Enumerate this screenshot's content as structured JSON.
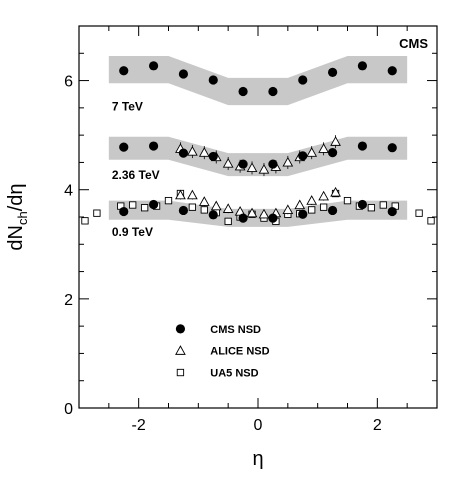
{
  "chart_data": {
    "type": "scatter",
    "experiment_label": "CMS",
    "xlabel_html": "η",
    "ylabel_main": "dN",
    "ylabel_sub": "ch",
    "ylabel_tail": "/dη",
    "xlim": [
      -3,
      3
    ],
    "ylim": [
      0,
      7
    ],
    "x_ticks": [
      -2,
      0,
      2
    ],
    "x_tick_labels": [
      "-2",
      "0",
      "2"
    ],
    "y_ticks": [
      0,
      2,
      4,
      6
    ],
    "y_tick_labels": [
      "0",
      "2",
      "4",
      "6"
    ],
    "energy_labels": [
      {
        "text": "7 TeV",
        "x": -2.45,
        "y": 5.45
      },
      {
        "text": "2.36 TeV",
        "x": -2.45,
        "y": 4.2
      },
      {
        "text": "0.9 TeV",
        "x": -2.45,
        "y": 3.15
      }
    ],
    "bands": [
      {
        "name": "7 TeV systematic",
        "x": [
          -2.5,
          -1.5,
          -0.5,
          0.5,
          1.5,
          2.5
        ],
        "lower": [
          5.95,
          5.95,
          5.55,
          5.55,
          5.95,
          5.95
        ],
        "upper": [
          6.45,
          6.45,
          6.05,
          6.05,
          6.45,
          6.45
        ]
      },
      {
        "name": "2.36 TeV systematic",
        "x": [
          -2.5,
          -1.5,
          -0.5,
          0.5,
          1.5,
          2.5
        ],
        "lower": [
          4.55,
          4.55,
          4.25,
          4.25,
          4.55,
          4.55
        ],
        "upper": [
          4.97,
          4.97,
          4.67,
          4.67,
          4.97,
          4.97
        ]
      },
      {
        "name": "0.9 TeV systematic",
        "x": [
          -2.5,
          -1.5,
          -0.5,
          0.5,
          1.5,
          2.5
        ],
        "lower": [
          3.45,
          3.45,
          3.32,
          3.32,
          3.45,
          3.45
        ],
        "upper": [
          3.8,
          3.8,
          3.65,
          3.65,
          3.8,
          3.8
        ]
      }
    ],
    "series": [
      {
        "name": "CMS NSD",
        "marker": "filled-circle",
        "energy": "7 TeV",
        "x": [
          -2.25,
          -1.75,
          -1.25,
          -0.75,
          -0.25,
          0.25,
          0.75,
          1.25,
          1.75,
          2.25
        ],
        "y": [
          6.18,
          6.27,
          6.12,
          6.01,
          5.8,
          5.8,
          6.01,
          6.15,
          6.27,
          6.18
        ]
      },
      {
        "name": "CMS NSD",
        "marker": "filled-circle",
        "energy": "2.36 TeV",
        "x": [
          -2.25,
          -1.75,
          -1.25,
          -0.75,
          -0.25,
          0.25,
          0.75,
          1.25,
          1.75,
          2.25
        ],
        "y": [
          4.78,
          4.8,
          4.67,
          4.61,
          4.47,
          4.47,
          4.62,
          4.68,
          4.8,
          4.77
        ]
      },
      {
        "name": "CMS NSD",
        "marker": "filled-circle",
        "energy": "0.9 TeV",
        "x": [
          -2.25,
          -1.75,
          -1.25,
          -0.75,
          -0.25,
          0.25,
          0.75,
          1.25,
          1.75,
          2.25
        ],
        "y": [
          3.6,
          3.73,
          3.62,
          3.54,
          3.48,
          3.48,
          3.55,
          3.62,
          3.73,
          3.6
        ]
      },
      {
        "name": "ALICE NSD",
        "marker": "open-triangle",
        "energy": "2.36 TeV",
        "x": [
          -1.3,
          -1.1,
          -0.9,
          -0.7,
          -0.5,
          -0.3,
          -0.1,
          0.1,
          0.3,
          0.5,
          0.7,
          0.9,
          1.1,
          1.3
        ],
        "y": [
          4.75,
          4.7,
          4.68,
          4.6,
          4.48,
          4.43,
          4.4,
          4.37,
          4.42,
          4.5,
          4.6,
          4.68,
          4.75,
          4.88
        ],
        "err": [
          0.12,
          0.12,
          0.12,
          0.12,
          0.12,
          0.12,
          0.12,
          0.12,
          0.12,
          0.12,
          0.12,
          0.12,
          0.12,
          0.12
        ]
      },
      {
        "name": "ALICE NSD",
        "marker": "open-triangle",
        "energy": "0.9 TeV",
        "x": [
          -1.3,
          -1.1,
          -0.9,
          -0.7,
          -0.5,
          -0.3,
          -0.1,
          0.1,
          0.3,
          0.5,
          0.7,
          0.9,
          1.1,
          1.3
        ],
        "y": [
          3.9,
          3.9,
          3.78,
          3.7,
          3.65,
          3.6,
          3.57,
          3.55,
          3.57,
          3.63,
          3.72,
          3.8,
          3.88,
          3.95
        ],
        "err": [
          0.08,
          0.08,
          0.08,
          0.08,
          0.08,
          0.08,
          0.08,
          0.08,
          0.08,
          0.08,
          0.08,
          0.08,
          0.08,
          0.08
        ]
      },
      {
        "name": "UA5 NSD",
        "marker": "open-square",
        "energy": "0.9 TeV",
        "x": [
          -2.9,
          -2.7,
          -2.3,
          -2.1,
          -1.9,
          -1.7,
          -1.5,
          -1.3,
          -1.1,
          -0.9,
          -0.7,
          -0.5,
          -0.3,
          -0.1,
          0.1,
          0.3,
          0.5,
          0.7,
          0.9,
          1.1,
          1.3,
          1.5,
          1.7,
          1.9,
          2.1,
          2.3,
          2.7,
          2.9
        ],
        "y": [
          3.43,
          3.57,
          3.7,
          3.72,
          3.67,
          3.7,
          3.8,
          3.93,
          3.68,
          3.63,
          3.58,
          3.42,
          3.5,
          3.55,
          3.48,
          3.42,
          3.55,
          3.56,
          3.63,
          3.68,
          3.93,
          3.8,
          3.7,
          3.67,
          3.72,
          3.7,
          3.57,
          3.43
        ]
      }
    ],
    "legend": {
      "placement": "bottom-center",
      "entries": [
        {
          "label": "CMS NSD",
          "marker": "filled-circle"
        },
        {
          "label": "ALICE NSD",
          "marker": "open-triangle"
        },
        {
          "label": "UA5 NSD",
          "marker": "open-square"
        }
      ]
    },
    "colors": {
      "band": "#c8c8c8",
      "marker": "#000000",
      "axis": "#000000"
    }
  }
}
